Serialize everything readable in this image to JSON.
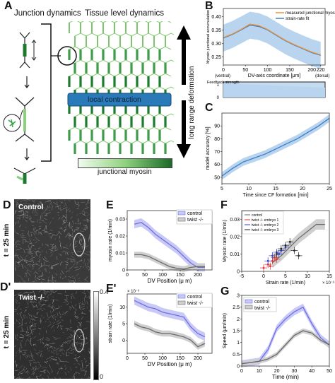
{
  "panels": {
    "A": {
      "letter": "A",
      "title_left": "Junction dynamics",
      "title_right": "Tissue level dynamics",
      "band_label": "local contraction",
      "arrow_label": "long range deformation",
      "scale_label": "junctional myosin"
    },
    "B": {
      "letter": "B",
      "legend": [
        "measured junctional myosin",
        "strain-rate fit"
      ],
      "ylabel": "Myosin junctional accumulation",
      "xlabel": "DV-axis coordinate [μm]",
      "ticks_x": [
        "0",
        "50",
        "100",
        "150",
        "200",
        "220"
      ],
      "ticks_y": [
        "0.25",
        "0.30",
        "0.35",
        "0.40"
      ],
      "x_end_labels": [
        "(ventral)",
        "(dorsal)"
      ],
      "feedback_label": "Feedback strength",
      "feedback_ticks": [
        "1",
        "0"
      ]
    },
    "C": {
      "letter": "C",
      "ylabel": "model accuracy [%]",
      "xlabel": "Time since CF formation [min]",
      "ticks_x": [
        "5",
        "10",
        "15",
        "20",
        "25"
      ],
      "ticks_y": [
        "50",
        "60",
        "70",
        "80",
        "90"
      ]
    },
    "D": {
      "letter": "D",
      "label": "Control",
      "time": "t = 25 min"
    },
    "D2": {
      "letter": "D'",
      "label": "Twist -/-",
      "time": "t = 25 min",
      "cbar_ticks": [
        "0.4",
        "0"
      ]
    },
    "E": {
      "letter": "E",
      "ylabel": "myosin rate (1/min)",
      "xlabel": "DV Position (μ m)",
      "ticks_x": [
        "0",
        "50",
        "100",
        "150",
        "200"
      ],
      "ticks_y": [
        "0",
        "0.01",
        "0.02",
        "0.03"
      ],
      "legend": [
        "control",
        "twist -/-"
      ]
    },
    "E2": {
      "letter": "E'",
      "ylabel": "strain rate (1/min)",
      "xlabel": "DV Position (μ m)",
      "exp": "× 10⁻³",
      "ticks_x": [
        "0",
        "50",
        "100",
        "150",
        "200"
      ],
      "ticks_y": [
        "0",
        "5",
        "10"
      ],
      "legend": [
        "control",
        "twist -/-"
      ]
    },
    "F": {
      "letter": "F",
      "ylabel": "Myosin rate (1/min)",
      "xlabel": "Strain rate (1/min)",
      "exp": "× 10⁻³",
      "ticks_x": [
        "-5",
        "0",
        "5",
        "10",
        "15"
      ],
      "ticks_y": [
        "0",
        "0.01",
        "0.02",
        "0.03"
      ],
      "legend": [
        "control",
        "twist -/- embryo 1",
        "twist -/- embryo 2",
        "twist -/- embryo 3"
      ]
    },
    "G": {
      "letter": "G",
      "ylabel": "Speed (μm/min)",
      "xlabel": "Time (min)",
      "ticks_x": [
        "0",
        "10",
        "20",
        "30",
        "40",
        "50"
      ],
      "ticks_y": [
        "0",
        "0.5",
        "1",
        "1.5",
        "2",
        "2.5",
        "3"
      ],
      "legend": [
        "control",
        "twist -/-"
      ]
    }
  },
  "colors": {
    "control": "#6e6ee6",
    "control_fill": "#c9c9f5",
    "twist": "#6a6a6a",
    "twist_fill": "#cfcfcf",
    "measured": "#e9953c",
    "fit": "#3e7cc7",
    "fit_fill": "#b9d4ee",
    "green_dark": "#1e7a2e",
    "green_light": "#bfe6b0",
    "band": "#2a7ab8"
  },
  "chart_data": [
    {
      "type": "line",
      "panel": "B",
      "x": [
        0,
        20,
        40,
        60,
        80,
        100,
        120,
        140,
        160,
        180,
        200,
        220
      ],
      "series": [
        {
          "name": "measured junctional myosin",
          "values": [
            0.322,
            0.335,
            0.352,
            0.372,
            0.367,
            0.352,
            0.332,
            0.312,
            0.296,
            0.282,
            0.268,
            0.258
          ]
        },
        {
          "name": "strain-rate fit",
          "values": [
            0.32,
            0.333,
            0.35,
            0.368,
            0.363,
            0.35,
            0.33,
            0.31,
            0.294,
            0.28,
            0.266,
            0.256
          ]
        }
      ],
      "band": [
        0.05,
        0.05,
        0.05,
        0.05,
        0.05,
        0.05,
        0.05,
        0.05,
        0.05,
        0.05,
        0.05,
        0.05
      ],
      "xlim": [
        0,
        230
      ],
      "ylim": [
        0.22,
        0.43
      ]
    },
    {
      "type": "line",
      "panel": "C",
      "x": [
        5,
        7,
        9,
        11,
        13,
        15,
        17,
        19,
        21,
        23,
        25
      ],
      "series": [
        {
          "values": [
            51,
            57,
            62,
            65,
            68,
            72,
            76,
            80,
            85,
            90,
            96
          ]
        }
      ],
      "band": [
        3,
        3,
        3,
        3,
        3,
        3,
        3,
        3,
        3,
        3,
        3
      ],
      "xlim": [
        5,
        25
      ],
      "ylim": [
        45,
        100
      ]
    },
    {
      "type": "line",
      "panel": "E",
      "x": [
        20,
        40,
        60,
        80,
        100,
        120,
        140,
        160,
        180,
        200,
        220
      ],
      "series": [
        {
          "name": "control",
          "values": [
            0.027,
            0.028,
            0.025,
            0.021,
            0.018,
            0.015,
            0.012,
            0.008,
            0.004,
            0.0015,
            0.0015
          ]
        },
        {
          "name": "twist -/-",
          "values": [
            0.009,
            0.009,
            0.008,
            0.006,
            0.004,
            0.002,
            0.001,
            0.0005,
            0.0015,
            0.002,
            0.002
          ]
        }
      ],
      "xlim": [
        0,
        240
      ],
      "ylim": [
        0,
        0.035
      ]
    },
    {
      "type": "line",
      "panel": "E'",
      "x": [
        20,
        40,
        60,
        80,
        100,
        120,
        140,
        160,
        180,
        200,
        220
      ],
      "series": [
        {
          "name": "control",
          "values": [
            12,
            11,
            10,
            9.5,
            8.5,
            8,
            7.5,
            7,
            4,
            2,
            1
          ]
        },
        {
          "name": "twist -/-",
          "values": [
            5,
            4,
            3.5,
            2.5,
            2,
            2,
            1.5,
            1,
            0,
            -2,
            -1
          ]
        }
      ],
      "xlim": [
        0,
        240
      ],
      "ylim": [
        -4,
        14
      ]
    },
    {
      "type": "scatter",
      "panel": "F",
      "series": [
        {
          "name": "control",
          "x": [
            2,
            4,
            6,
            8,
            10,
            12,
            13,
            14
          ],
          "y": [
            0.005,
            0.009,
            0.014,
            0.019,
            0.023,
            0.027,
            0.027,
            0.027
          ]
        },
        {
          "name": "twist -/- embryo 1",
          "x": [
            0,
            1,
            2,
            2.5,
            3,
            1.5
          ],
          "y": [
            0.002,
            0.004,
            0.006,
            0.008,
            0.007,
            0.003
          ]
        },
        {
          "name": "twist -/- embryo 2",
          "x": [
            1,
            2,
            3,
            4,
            5,
            3.5
          ],
          "y": [
            0.006,
            0.009,
            0.011,
            0.012,
            0.014,
            0.01
          ]
        },
        {
          "name": "twist -/- embryo 3",
          "x": [
            3,
            4,
            5,
            6,
            7,
            8
          ],
          "y": [
            0.01,
            0.013,
            0.015,
            0.017,
            0.012,
            0.009
          ]
        }
      ],
      "xlim": [
        -5,
        15
      ],
      "ylim": [
        0,
        0.035
      ]
    },
    {
      "type": "line",
      "panel": "G",
      "x": [
        0,
        5,
        10,
        15,
        20,
        25,
        30,
        35,
        40,
        45,
        50
      ],
      "series": [
        {
          "name": "control",
          "values": [
            0.1,
            0.15,
            0.2,
            0.7,
            1.6,
            2.0,
            2.3,
            2.5,
            1.8,
            1.2,
            0.9
          ]
        },
        {
          "name": "twist -/-",
          "values": [
            0.1,
            0.15,
            0.2,
            0.3,
            0.5,
            0.9,
            1.3,
            1.5,
            1.4,
            1.1,
            0.9
          ]
        }
      ],
      "xlim": [
        0,
        50
      ],
      "ylim": [
        0,
        3
      ]
    }
  ]
}
